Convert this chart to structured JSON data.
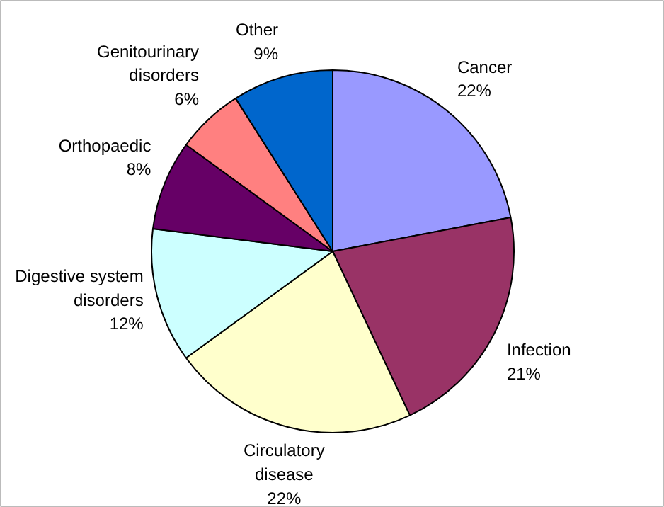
{
  "chart_data": {
    "type": "pie",
    "categories": [
      "Cancer",
      "Infection",
      "Circulatory disease",
      "Digestive system disorders",
      "Orthopaedic",
      "Genitourinary disorders",
      "Other"
    ],
    "values": [
      22,
      21,
      22,
      12,
      8,
      6,
      9
    ],
    "value_labels": [
      "22%",
      "21%",
      "22%",
      "12%",
      "8%",
      "6%",
      "9%"
    ],
    "colors": [
      "#9999ff",
      "#993366",
      "#ffffcc",
      "#ccffff",
      "#660066",
      "#ff8080",
      "#0066cc"
    ]
  }
}
